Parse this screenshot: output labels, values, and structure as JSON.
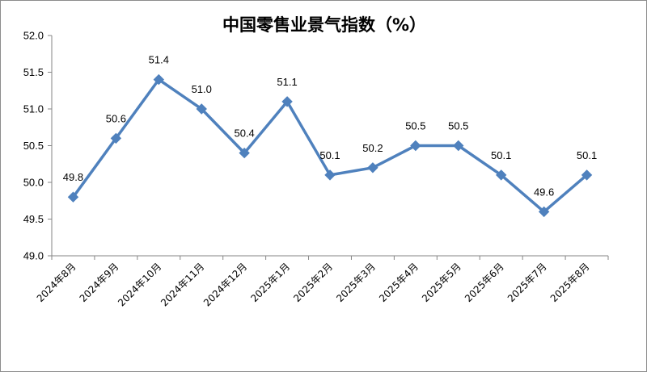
{
  "chart_data": {
    "type": "line",
    "title": "中国零售业景气指数（%）",
    "xlabel": "",
    "ylabel": "",
    "categories": [
      "2024年8月",
      "2024年9月",
      "2024年10月",
      "2024年11月",
      "2024年12月",
      "2025年1月",
      "2025年2月",
      "2025年3月",
      "2025年4月",
      "2025年5月",
      "2025年6月",
      "2025年7月",
      "2025年8月"
    ],
    "series": [
      {
        "values": [
          49.8,
          50.6,
          51.4,
          51.0,
          50.4,
          51.1,
          50.1,
          50.2,
          50.5,
          50.5,
          50.1,
          49.6,
          50.1
        ]
      }
    ],
    "data_labels": [
      "49.8",
      "50.6",
      "51.4",
      "51.0",
      "50.4",
      "51.1",
      "50.1",
      "50.2",
      "50.5",
      "50.5",
      "50.1",
      "49.6",
      "50.1"
    ],
    "ylim": [
      49.0,
      52.0
    ],
    "yticks": [
      "49.0",
      "49.5",
      "50.0",
      "50.5",
      "51.0",
      "51.5",
      "52.0"
    ],
    "grid": false,
    "legend": "none",
    "colors": {
      "line": "#4f81bd",
      "axis": "#868686"
    }
  }
}
